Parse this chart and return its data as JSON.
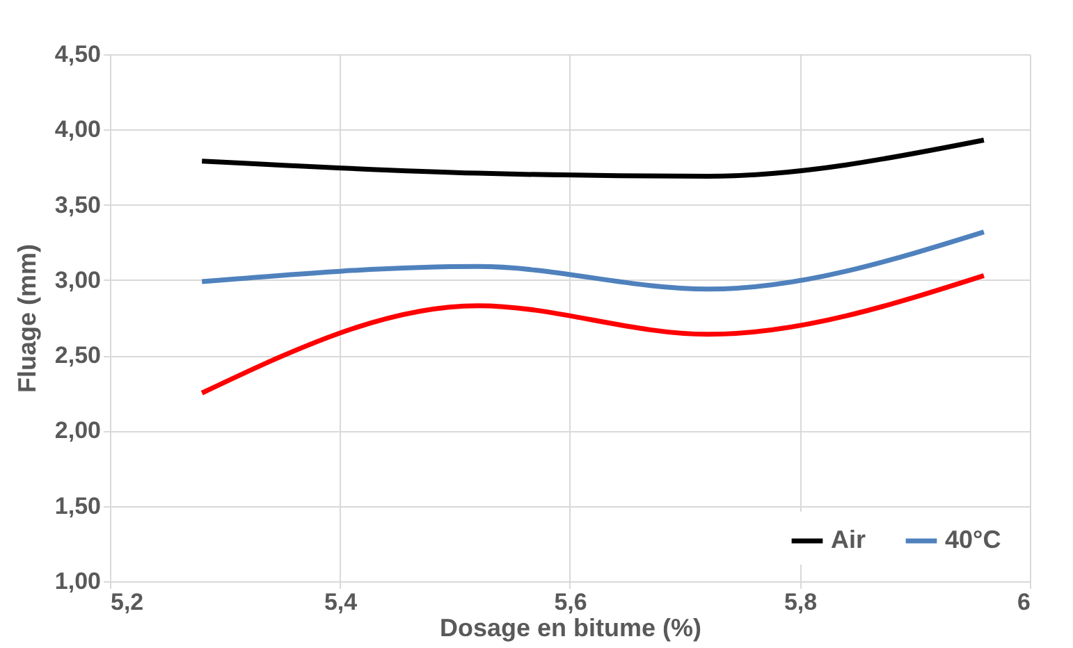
{
  "chart_data": {
    "type": "line",
    "xlabel": "Dosage  en bitume (%)",
    "ylabel": "Fluage (mm)",
    "x": [
      5.28,
      5.52,
      5.72,
      5.96
    ],
    "series": [
      {
        "name": "Air",
        "color": "#000000",
        "values": [
          3.79,
          3.71,
          3.69,
          3.93
        ]
      },
      {
        "name": "40°C",
        "color": "#4f81bd",
        "values": [
          2.99,
          3.09,
          2.94,
          3.32
        ]
      },
      {
        "color": "#ff0000",
        "values": [
          2.25,
          2.83,
          2.64,
          3.03
        ]
      }
    ],
    "xlim": [
      5.2,
      6
    ],
    "xticks": [
      {
        "value": 5.2,
        "label": "5,2"
      },
      {
        "value": 5.4,
        "label": "5,4"
      },
      {
        "value": 5.6,
        "label": "5,6"
      },
      {
        "value": 5.8,
        "label": "5,8"
      },
      6
    ],
    "ylim": [
      1,
      4.5
    ],
    "yticks": [
      {
        "value": 1,
        "label": "1,00"
      },
      {
        "value": 1.5,
        "label": "1,50"
      },
      {
        "value": 2,
        "label": "2,00"
      },
      {
        "value": 2.5,
        "label": "2,50"
      },
      {
        "value": 3,
        "label": "3,00"
      },
      {
        "value": 3.5,
        "label": "3,50"
      },
      {
        "value": 4,
        "label": "4,00"
      },
      {
        "value": 4.5,
        "label": "4,50"
      }
    ],
    "grid": true,
    "legend": "bottom right",
    "marker": "none",
    "line_style": "solid"
  }
}
